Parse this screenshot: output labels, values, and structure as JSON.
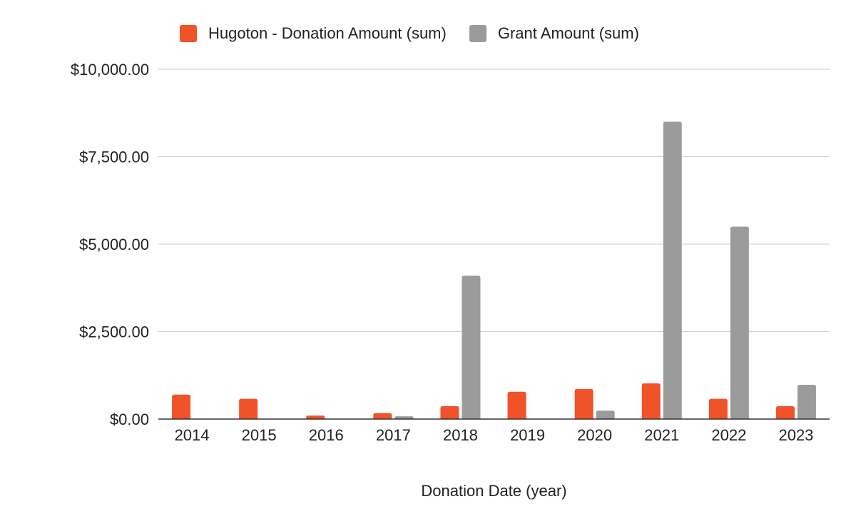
{
  "chart_data": {
    "type": "bar",
    "categories": [
      "2014",
      "2015",
      "2016",
      "2017",
      "2018",
      "2019",
      "2020",
      "2021",
      "2022",
      "2023"
    ],
    "series": [
      {
        "name": "Hugoton - Donation Amount (sum)",
        "color": "#f05329",
        "values": [
          700,
          580,
          100,
          170,
          370,
          780,
          860,
          1020,
          580,
          370
        ]
      },
      {
        "name": "Grant Amount (sum)",
        "color": "#9b9b9b",
        "values": [
          0,
          0,
          0,
          80,
          4100,
          0,
          240,
          8500,
          5500,
          980
        ]
      }
    ],
    "y_ticks": [
      "$0.00",
      "$2,500.00",
      "$5,000.00",
      "$7,500.00",
      "$10,000.00"
    ],
    "ylim": [
      0,
      10000
    ],
    "xlabel": "Donation Date (year)",
    "ylabel": "",
    "title": "",
    "grid": true,
    "legend_position": "top-left"
  }
}
